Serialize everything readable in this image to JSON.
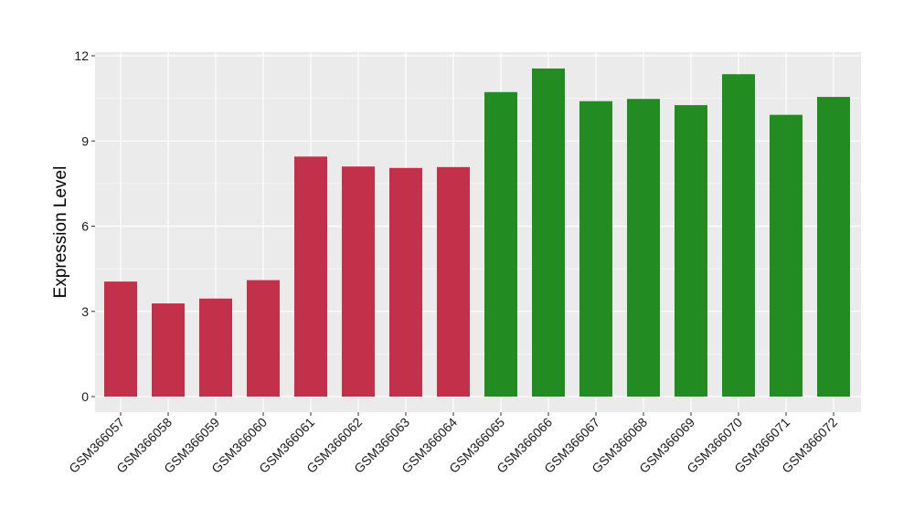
{
  "chart_data": {
    "type": "bar",
    "title": "",
    "xlabel": "",
    "ylabel": "Expression Level",
    "ylim": [
      0,
      12
    ],
    "yticks": [
      0,
      3,
      6,
      9,
      12
    ],
    "grid": true,
    "legend": "none",
    "categories": [
      "GSM366057",
      "GSM366058",
      "GSM366059",
      "GSM366060",
      "GSM366061",
      "GSM366062",
      "GSM366063",
      "GSM366064",
      "GSM366065",
      "GSM366066",
      "GSM366067",
      "GSM366068",
      "GSM366069",
      "GSM366070",
      "GSM366071",
      "GSM366072"
    ],
    "values": [
      4.05,
      3.28,
      3.45,
      4.1,
      8.45,
      8.1,
      8.05,
      8.08,
      10.72,
      11.55,
      10.4,
      10.48,
      10.26,
      11.35,
      9.92,
      10.55
    ],
    "bar_colors": [
      "#C3304A",
      "#C3304A",
      "#C3304A",
      "#C3304A",
      "#C3304A",
      "#C3304A",
      "#C3304A",
      "#C3304A",
      "#228B22",
      "#228B22",
      "#228B22",
      "#228B22",
      "#228B22",
      "#228B22",
      "#228B22",
      "#228B22"
    ],
    "panel_background": "#EBEBEB",
    "grid_color": "#FFFFFF"
  }
}
